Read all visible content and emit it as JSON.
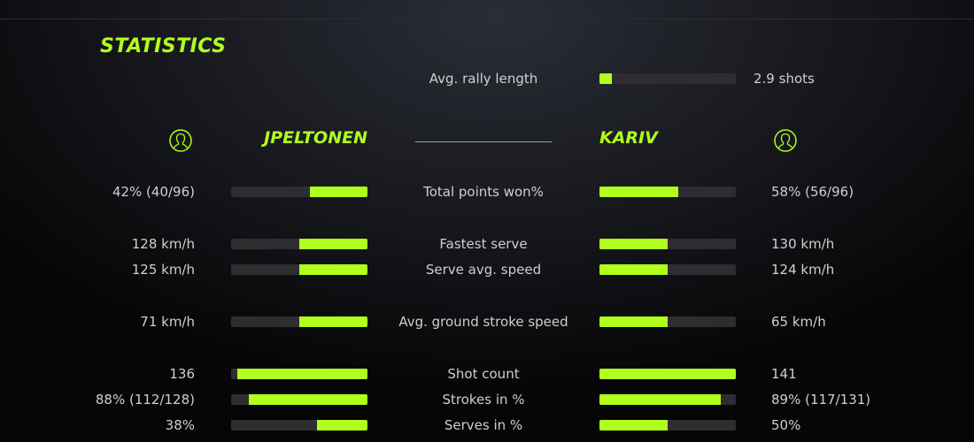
{
  "title": "STATISTICS",
  "accent_color": "#b0ff1c",
  "players": {
    "left": {
      "name": "JPELTONEN",
      "icon": "user-avatar-icon"
    },
    "right": {
      "name": "KARIV",
      "icon": "user-avatar-icon"
    }
  },
  "rally": {
    "label": "Avg. rally length",
    "value": "2.9 shots",
    "fill": 0.09
  },
  "stats": [
    {
      "label": "Total points won%",
      "left": "42% (40/96)",
      "right": "58% (56/96)",
      "left_fill": 0.42,
      "right_fill": 0.58
    },
    {
      "label": "Fastest serve",
      "left": "128 km/h",
      "right": "130 km/h",
      "left_fill": 0.5,
      "right_fill": 0.5
    },
    {
      "label": "Serve avg. speed",
      "left": "125 km/h",
      "right": "124 km/h",
      "left_fill": 0.5,
      "right_fill": 0.5
    },
    {
      "label": "Avg. ground stroke speed",
      "left": "71 km/h",
      "right": "65 km/h",
      "left_fill": 0.5,
      "right_fill": 0.5
    },
    {
      "label": "Shot count",
      "left": "136",
      "right": "141",
      "left_fill": 0.955,
      "right_fill": 1.0
    },
    {
      "label": "Strokes in %",
      "left": "88% (112/128)",
      "right": "89% (117/131)",
      "left_fill": 0.87,
      "right_fill": 0.89
    },
    {
      "label": "Serves in %",
      "left": "38%",
      "right": "50%",
      "left_fill": 0.37,
      "right_fill": 0.5
    }
  ]
}
